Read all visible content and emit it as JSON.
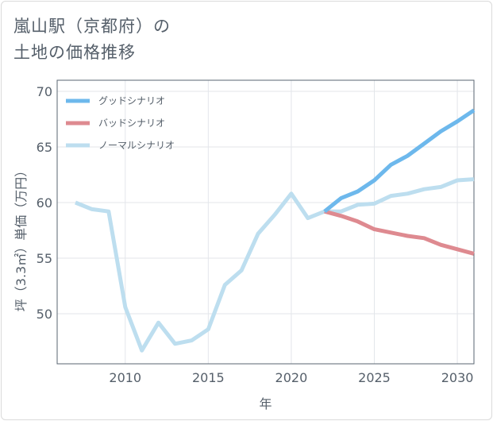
{
  "title": {
    "line1": "嵐山駅（京都府）の",
    "line2": "土地の価格推移"
  },
  "chart_data": {
    "type": "line",
    "xlabel": "年",
    "ylabel": "坪（3.3㎡）単価（万円）",
    "xlim": [
      2005.9,
      2031
    ],
    "ylim": [
      45.5,
      71
    ],
    "xticks": [
      2010,
      2015,
      2020,
      2025,
      2030
    ],
    "yticks": [
      50,
      55,
      60,
      65,
      70
    ],
    "grid": true,
    "legend_position": "top-left",
    "series": [
      {
        "name": "グッドシナリオ",
        "color": "#6db8ec",
        "x": [
          2022,
          2023,
          2024,
          2025,
          2026,
          2027,
          2028,
          2029,
          2030,
          2031
        ],
        "y": [
          59.2,
          60.4,
          61.0,
          62.0,
          63.4,
          64.2,
          65.3,
          66.4,
          67.3,
          68.3
        ]
      },
      {
        "name": "バッドシナリオ",
        "color": "#de8a90",
        "x": [
          2022,
          2023,
          2024,
          2025,
          2026,
          2027,
          2028,
          2029,
          2030,
          2031
        ],
        "y": [
          59.2,
          58.8,
          58.3,
          57.6,
          57.3,
          57.0,
          56.8,
          56.2,
          55.8,
          55.4
        ]
      },
      {
        "name": "ノーマルシナリオ",
        "color": "#bddeef",
        "x": [
          2007,
          2008,
          2009,
          2010,
          2011,
          2012,
          2013,
          2014,
          2015,
          2016,
          2017,
          2018,
          2019,
          2020,
          2021,
          2022,
          2023,
          2024,
          2025,
          2026,
          2027,
          2028,
          2029,
          2030,
          2031
        ],
        "y": [
          60.0,
          59.4,
          59.2,
          50.6,
          46.7,
          49.2,
          47.3,
          47.6,
          48.6,
          52.6,
          53.9,
          57.2,
          58.9,
          60.8,
          58.6,
          59.2,
          59.2,
          59.8,
          59.9,
          60.6,
          60.8,
          61.2,
          61.4,
          62.0,
          62.1
        ]
      }
    ]
  }
}
